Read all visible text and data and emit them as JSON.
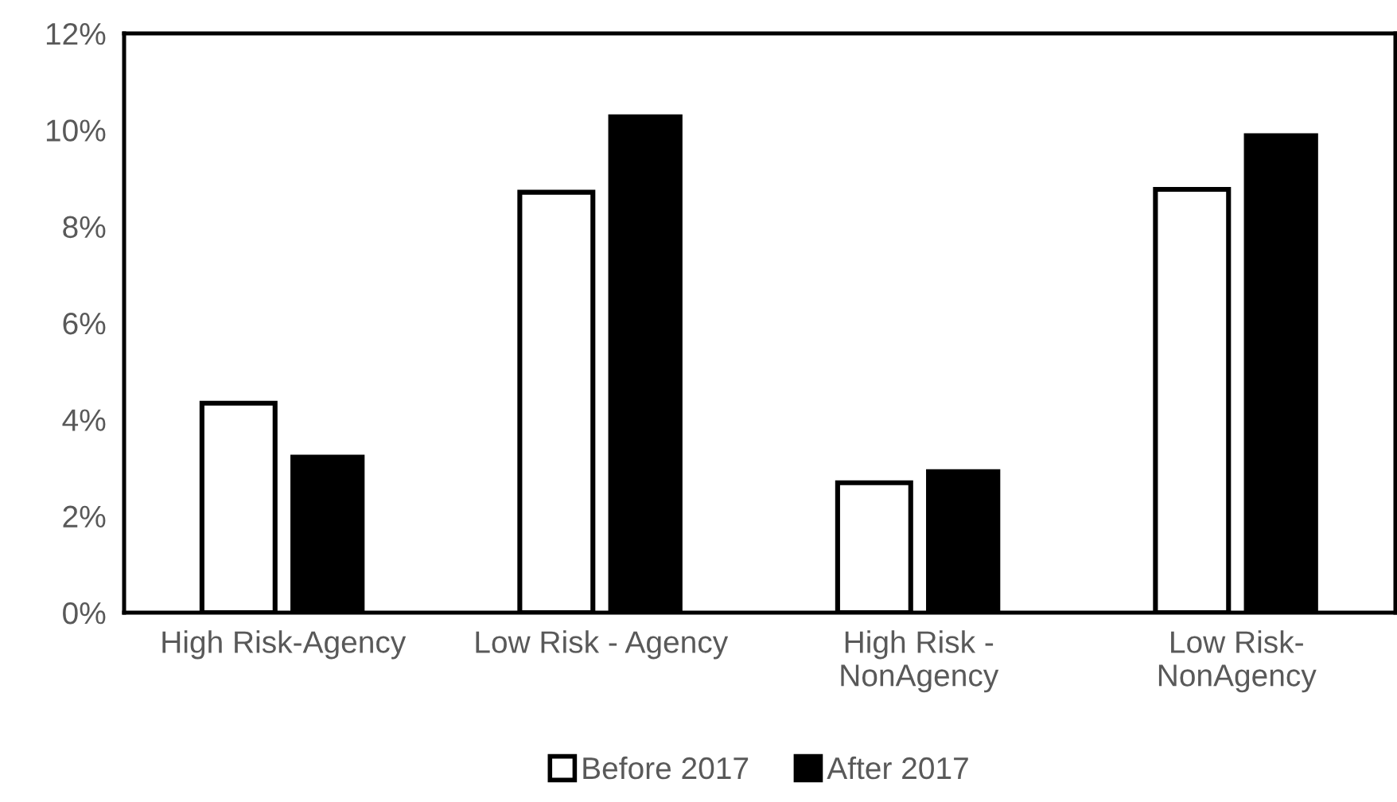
{
  "chart_data": {
    "type": "bar",
    "categories": [
      "High Risk-Agency",
      "Low Risk - Agency",
      "High Risk -\nNonAgency",
      "Low Risk-\nNonAgency"
    ],
    "series": [
      {
        "name": "Before 2017",
        "color": "#ffffff",
        "values": [
          4.34,
          8.71,
          2.69,
          8.77
        ]
      },
      {
        "name": "After 2017",
        "color": "#000000",
        "values": [
          3.26,
          10.31,
          2.96,
          9.92
        ]
      }
    ],
    "ylim": [
      0,
      12
    ],
    "yticks": [
      {
        "value": 0,
        "label": "0%"
      },
      {
        "value": 2,
        "label": "2%"
      },
      {
        "value": 4,
        "label": "4%"
      },
      {
        "value": 6,
        "label": "6%"
      },
      {
        "value": 8,
        "label": "8%"
      },
      {
        "value": 10,
        "label": "10%"
      },
      {
        "value": 12,
        "label": "12%"
      }
    ],
    "grid": false,
    "legend": "bottom"
  }
}
